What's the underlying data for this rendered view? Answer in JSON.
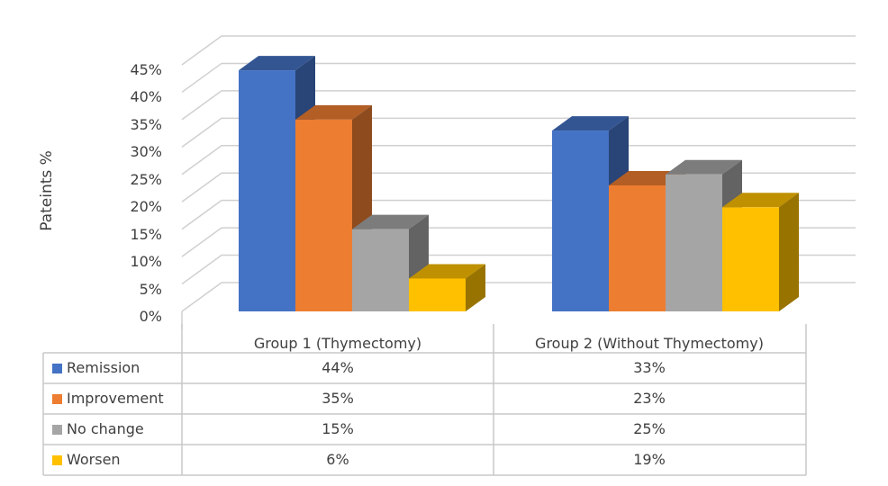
{
  "chart_data": {
    "type": "bar",
    "style": "3d-clustered-column-with-data-table",
    "title": "",
    "xlabel": "",
    "ylabel": "Pateints %",
    "ylim": [
      0,
      45
    ],
    "yticks": [
      "0%",
      "5%",
      "10%",
      "15%",
      "20%",
      "25%",
      "30%",
      "35%",
      "40%",
      "45%"
    ],
    "grid": true,
    "legend_position": "data-table",
    "categories": [
      "Group 1 (Thymectomy)",
      "Group 2 (Without Thymectomy)"
    ],
    "series": [
      {
        "name": "Remission",
        "color": "#4472C4",
        "values": [
          44,
          33
        ],
        "labels": [
          "44%",
          "33%"
        ]
      },
      {
        "name": "Improvement",
        "color": "#ED7D31",
        "values": [
          35,
          23
        ],
        "labels": [
          "35%",
          "23%"
        ]
      },
      {
        "name": "No change",
        "color": "#A5A5A5",
        "values": [
          15,
          25
        ],
        "labels": [
          "15%",
          "25%"
        ]
      },
      {
        "name": "Worsen",
        "color": "#FFC000",
        "values": [
          6,
          19
        ],
        "labels": [
          "6%",
          "19%"
        ]
      }
    ]
  }
}
